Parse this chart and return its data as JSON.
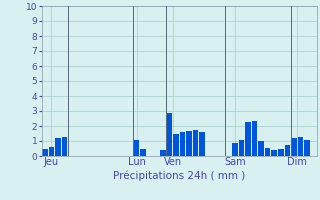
{
  "title": "",
  "xlabel": "Précipitations 24h ( mm )",
  "ylabel": "",
  "background_color": "#d8f0f0",
  "bar_color": "#0055dd",
  "ylim": [
    0,
    10
  ],
  "yticks": [
    0,
    1,
    2,
    3,
    4,
    5,
    6,
    7,
    8,
    9,
    10
  ],
  "day_labels": [
    "Jeu",
    "Lun",
    "Ven",
    "Sam",
    "Dim"
  ],
  "day_positions": [
    1,
    14,
    19.5,
    29,
    38.5
  ],
  "n_bars": 42,
  "bar_values": [
    0.5,
    0.6,
    1.2,
    1.3,
    0,
    0,
    0,
    0,
    0,
    0,
    0,
    0,
    0,
    0,
    1.1,
    0.45,
    0,
    0,
    0.4,
    2.85,
    1.5,
    1.6,
    1.7,
    1.75,
    1.6,
    0,
    0,
    0,
    0,
    0.9,
    1.1,
    2.3,
    2.35,
    1.0,
    0.55,
    0.4,
    0.45,
    0.75,
    1.2,
    1.3,
    1.1,
    0
  ],
  "vline_positions": [
    3.5,
    13.5,
    18.5,
    27.5,
    37.5
  ],
  "grid_color": "#aacccc",
  "tick_color": "#4444bb",
  "label_color": "#4444bb",
  "spine_color": "#8899aa"
}
